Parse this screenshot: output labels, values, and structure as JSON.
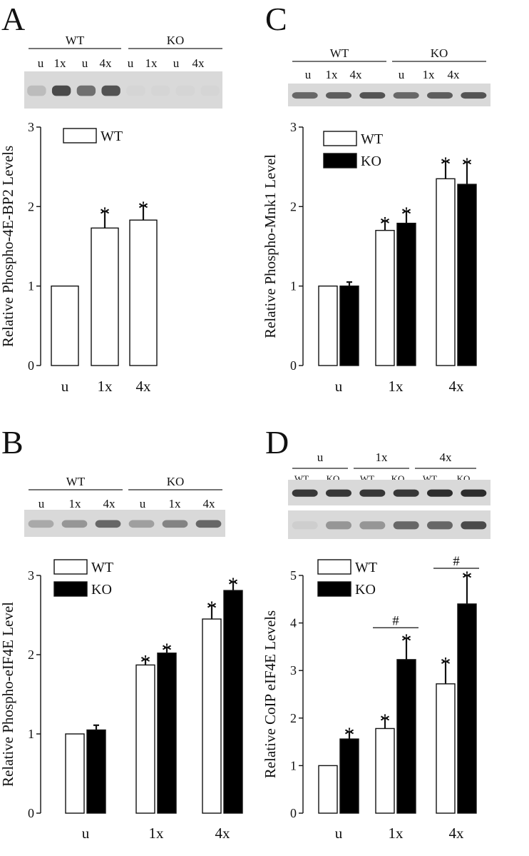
{
  "colors": {
    "WT": "#ffffff",
    "KO": "#000000",
    "axis": "#111111"
  },
  "chart_data": [
    {
      "panel": "A",
      "type": "bar",
      "categories": [
        "u",
        "1x",
        "4x"
      ],
      "series": [
        {
          "name": "WT",
          "values": [
            1.0,
            1.73,
            1.83
          ],
          "errors": [
            0,
            0.21,
            0.18
          ],
          "sig": [
            "",
            "*",
            "*"
          ]
        }
      ],
      "ylabel": "Relative Phospho-4E-BP2 Levels",
      "ylim": [
        0,
        3
      ],
      "yticks": [
        "0",
        "1",
        "2",
        "3"
      ],
      "legend": [
        "WT"
      ],
      "blot": {
        "groups": [
          "WT",
          "KO"
        ],
        "lanes": [
          "u",
          "1x",
          "u",
          "4x",
          "u",
          "1x",
          "u",
          "4x"
        ],
        "rows": [
          [
            0.15,
            0.75,
            0.55,
            0.7,
            0.02,
            0.02,
            0.02,
            0.02
          ]
        ]
      }
    },
    {
      "panel": "B",
      "type": "bar",
      "categories": [
        "u",
        "1x",
        "4x"
      ],
      "series": [
        {
          "name": "WT",
          "values": [
            1.0,
            1.87,
            2.45
          ],
          "errors": [
            0,
            0.07,
            0.17
          ],
          "sig": [
            "",
            "*",
            "*"
          ]
        },
        {
          "name": "KO",
          "values": [
            1.05,
            2.02,
            2.81
          ],
          "errors": [
            0.06,
            0.07,
            0.11
          ],
          "sig": [
            "",
            "*",
            "*"
          ]
        }
      ],
      "ylabel": "Relative Phospho-eIF4E Level",
      "ylim": [
        0,
        3
      ],
      "yticks": [
        "0",
        "1",
        "2",
        "3"
      ],
      "legend": [
        "WT",
        "KO"
      ],
      "blot": {
        "groups": [
          "WT",
          "KO"
        ],
        "lanes": [
          "u",
          "1x",
          "4x",
          "u",
          "1x",
          "4x"
        ],
        "rows": [
          [
            0.25,
            0.35,
            0.6,
            0.3,
            0.45,
            0.6
          ]
        ]
      }
    },
    {
      "panel": "C",
      "type": "bar",
      "categories": [
        "u",
        "1x",
        "4x"
      ],
      "series": [
        {
          "name": "WT",
          "values": [
            1.0,
            1.7,
            2.35
          ],
          "errors": [
            0,
            0.12,
            0.22
          ],
          "sig": [
            "",
            "*",
            "*"
          ]
        },
        {
          "name": "KO",
          "values": [
            1.0,
            1.79,
            2.28
          ],
          "errors": [
            0.05,
            0.15,
            0.28
          ],
          "sig": [
            "",
            "*",
            "*"
          ]
        }
      ],
      "ylabel": "Relative Phospho-Mnk1 Level",
      "ylim": [
        0,
        3
      ],
      "yticks": [
        "0",
        "1",
        "2",
        "3"
      ],
      "legend": [
        "WT",
        "KO"
      ],
      "blot": {
        "groups": [
          "WT",
          "KO"
        ],
        "lanes": [
          "u",
          "1x",
          "4x",
          "u",
          "1x",
          "4x"
        ],
        "rows": [
          [
            0.6,
            0.65,
            0.7,
            0.6,
            0.65,
            0.7
          ]
        ]
      }
    },
    {
      "panel": "D",
      "type": "bar",
      "categories": [
        "u",
        "1x",
        "4x"
      ],
      "series": [
        {
          "name": "WT",
          "values": [
            1.0,
            1.78,
            2.72
          ],
          "errors": [
            0,
            0.22,
            0.47
          ],
          "sig": [
            "",
            "*",
            "*"
          ]
        },
        {
          "name": "KO",
          "values": [
            1.56,
            3.23,
            4.4
          ],
          "errors": [
            0.15,
            0.45,
            0.6
          ],
          "sig": [
            "*",
            "*",
            "*"
          ]
        }
      ],
      "ylabel": "Relative CoIP eIF4E Levels",
      "ylim": [
        0,
        5
      ],
      "yticks": [
        "0",
        "1",
        "2",
        "3",
        "4",
        "5"
      ],
      "legend": [
        "WT",
        "KO"
      ],
      "annotations": [
        {
          "text": "#",
          "category": "1x",
          "y": 3.9
        },
        {
          "text": "#",
          "category": "4x",
          "y": 5.15
        }
      ],
      "blot": {
        "groups": [
          "u",
          "1x",
          "4x"
        ],
        "lanes": [
          "WT",
          "KO",
          "WT",
          "KO",
          "WT",
          "KO"
        ],
        "rows": [
          [
            0.85,
            0.85,
            0.85,
            0.85,
            0.9,
            0.9
          ],
          [
            0.05,
            0.35,
            0.35,
            0.6,
            0.6,
            0.75
          ]
        ]
      }
    }
  ]
}
